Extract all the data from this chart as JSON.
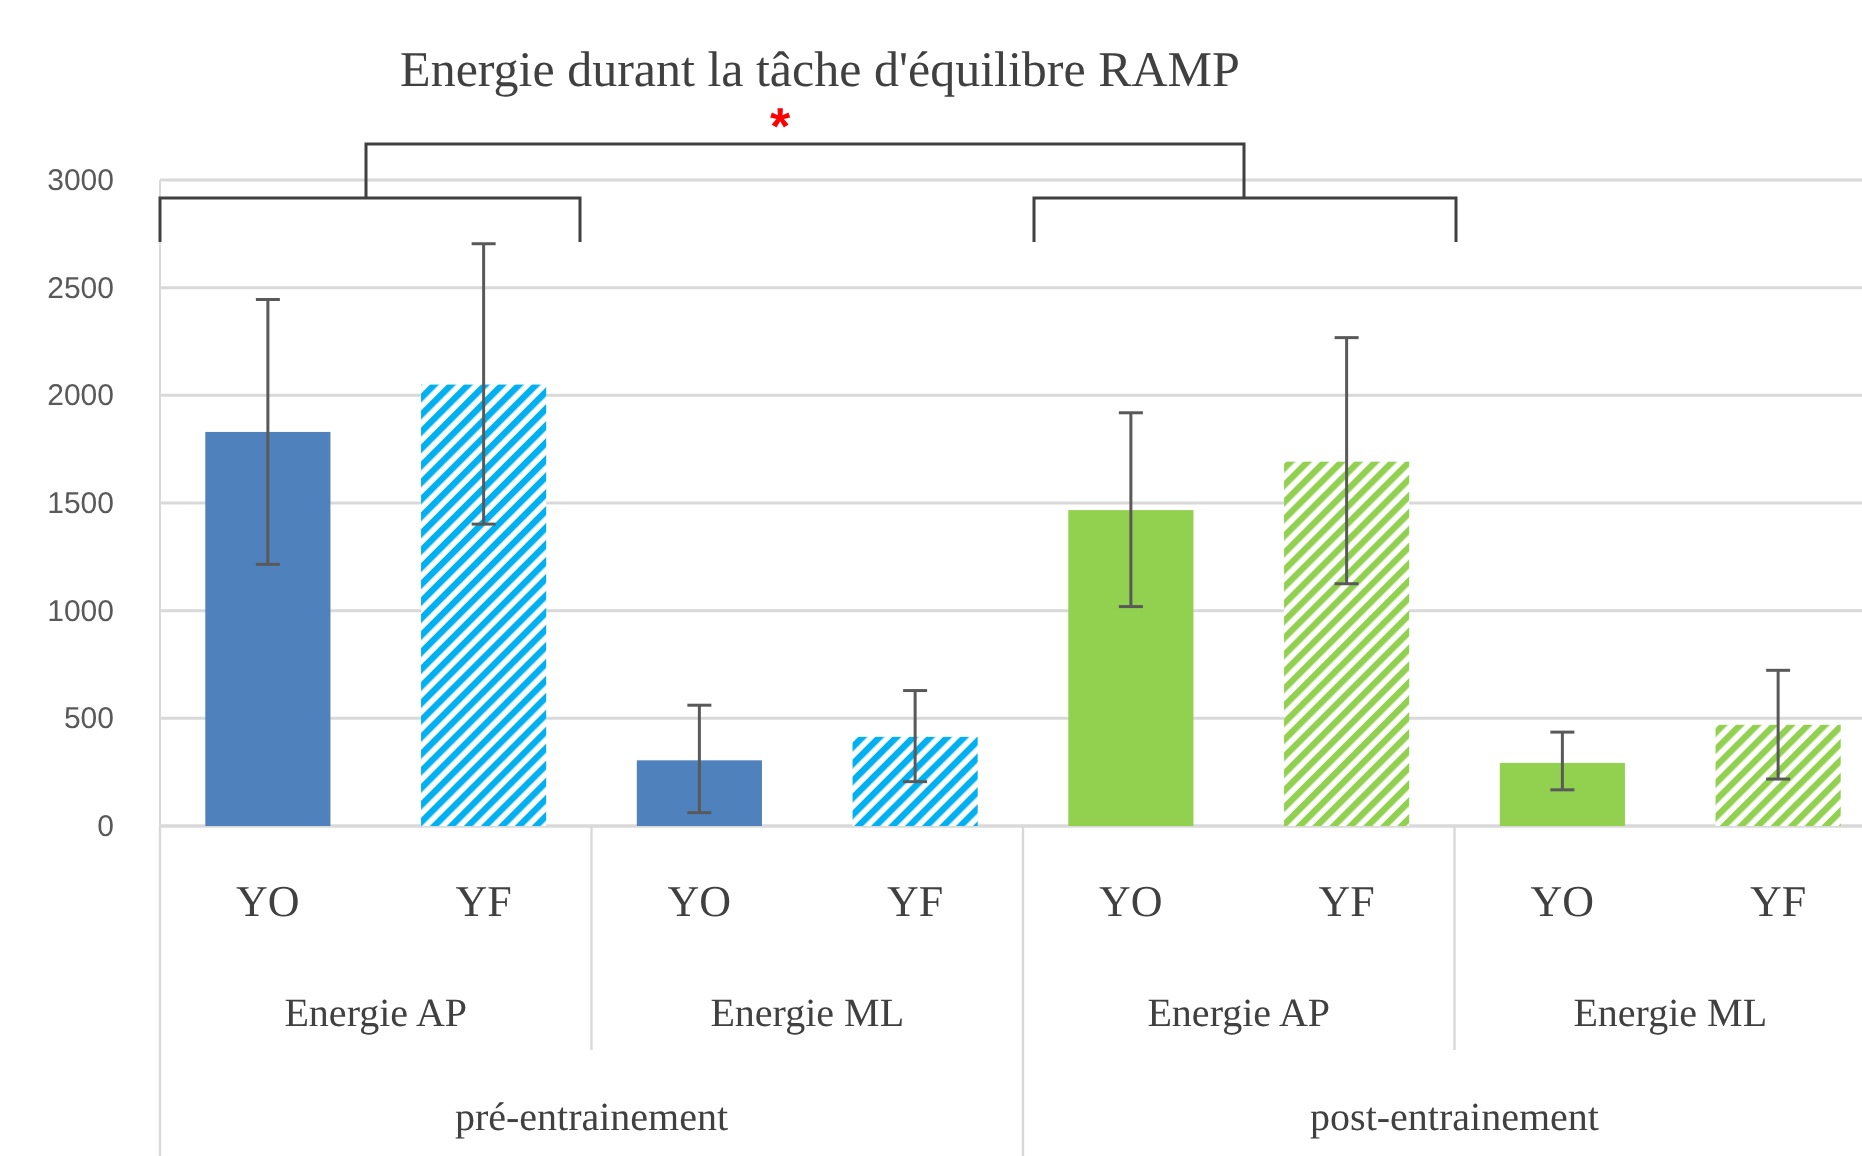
{
  "chart_data": {
    "type": "bar",
    "title": "Energie durant la tâche d'équilibre RAMP",
    "categories": [
      "YO",
      "YF",
      "YO",
      "YF",
      "YO",
      "YF",
      "YO",
      "YF"
    ],
    "values": [
      1830,
      2050,
      305,
      414,
      1467,
      1692,
      293,
      470
    ],
    "colors": [
      "#4f81bd",
      "#00b0f0",
      "#4f81bd",
      "#00b0f0",
      "#92d050",
      "#92d050",
      "#92d050",
      "#92d050"
    ],
    "errors": [
      [
        1215,
        2445
      ],
      [
        1402,
        2704
      ],
      [
        62,
        561
      ],
      [
        206,
        629
      ],
      [
        1019,
        1919
      ],
      [
        1125,
        2268
      ],
      [
        168,
        436
      ],
      [
        218,
        723
      ]
    ],
    "ylim": [
      0,
      3000
    ],
    "yticks": [
      0,
      500,
      1000,
      1500,
      2000,
      2500,
      3000
    ],
    "grid": "y",
    "annotations": [
      "*",
      "Energie AP",
      "Energie ML",
      "Energie AP",
      "Energie ML",
      "pré-entrainement",
      "post-entrainement"
    ]
  }
}
